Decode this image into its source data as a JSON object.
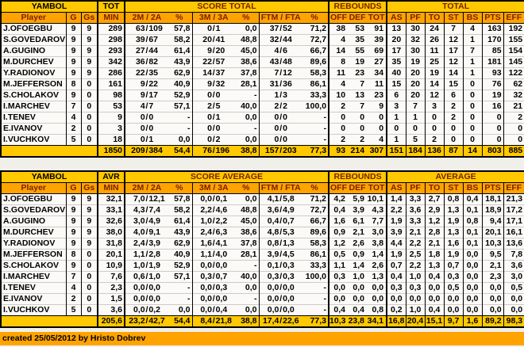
{
  "colors": {
    "group_header_bg": "#FFC800",
    "column_header_bg": "#FFA300",
    "header_text": "#7B2100",
    "total_row_bg": "#FFC800",
    "grid_line": "#000000",
    "row_separator": "#CFCBC4",
    "cell_bg": "#FBFAF8",
    "page_bg": "#F1EFEA"
  },
  "tables": [
    {
      "id": "totals",
      "team": "YAMBOL",
      "unit": "TOT",
      "groups": {
        "score": "SCORE TOTAL",
        "rebounds": "REBOUNDS",
        "stats": "TOTAL"
      },
      "column_headers": [
        "Player",
        "G",
        "Gs",
        "MIN",
        "2M / 2A",
        "%",
        "3M / 3A",
        "%",
        "FTM / FTA",
        "%",
        "OFF",
        "DEF",
        "TOT",
        "AS",
        "PF",
        "TO",
        "ST",
        "BS",
        "PTS",
        "EFF"
      ],
      "rows": [
        [
          "J.OFOEGBU",
          "9",
          "9",
          "289",
          "63",
          "109",
          "57,8",
          "0",
          "1",
          "0,0",
          "37",
          "52",
          "71,2",
          "38",
          "53",
          "91",
          "13",
          "30",
          "24",
          "7",
          "4",
          "163",
          "192"
        ],
        [
          "S.GOVEDAROV",
          "9",
          "9",
          "298",
          "39",
          "67",
          "58,2",
          "20",
          "41",
          "48,8",
          "32",
          "44",
          "72,7",
          "4",
          "35",
          "39",
          "20",
          "32",
          "26",
          "12",
          "1",
          "170",
          "155"
        ],
        [
          "A.GUGINO",
          "9",
          "9",
          "293",
          "27",
          "44",
          "61,4",
          "9",
          "20",
          "45,0",
          "4",
          "6",
          "66,7",
          "14",
          "55",
          "69",
          "17",
          "30",
          "11",
          "17",
          "7",
          "85",
          "154"
        ],
        [
          "M.DURCHEV",
          "9",
          "9",
          "342",
          "36",
          "82",
          "43,9",
          "22",
          "57",
          "38,6",
          "43",
          "48",
          "89,6",
          "8",
          "19",
          "27",
          "35",
          "19",
          "25",
          "12",
          "1",
          "181",
          "145"
        ],
        [
          "Y.RADIONOV",
          "9",
          "9",
          "286",
          "22",
          "35",
          "62,9",
          "14",
          "37",
          "37,8",
          "7",
          "12",
          "58,3",
          "11",
          "23",
          "34",
          "40",
          "20",
          "19",
          "14",
          "1",
          "93",
          "122"
        ],
        [
          "M.JEFFERSON",
          "8",
          "0",
          "161",
          "9",
          "22",
          "40,9",
          "9",
          "32",
          "28,1",
          "31",
          "36",
          "86,1",
          "4",
          "7",
          "11",
          "15",
          "20",
          "14",
          "15",
          "0",
          "76",
          "62"
        ],
        [
          "S.CHOLAKOV",
          "9",
          "0",
          "98",
          "9",
          "17",
          "52,9",
          "0",
          "0",
          "-",
          "1",
          "3",
          "33,3",
          "10",
          "13",
          "23",
          "6",
          "20",
          "12",
          "6",
          "0",
          "19",
          "32"
        ],
        [
          "I.MARCHEV",
          "7",
          "0",
          "53",
          "4",
          "7",
          "57,1",
          "2",
          "5",
          "40,0",
          "2",
          "2",
          "100,0",
          "2",
          "7",
          "9",
          "3",
          "7",
          "3",
          "2",
          "0",
          "16",
          "21"
        ],
        [
          "I.TENEV",
          "4",
          "0",
          "9",
          "0",
          "0",
          "-",
          "0",
          "1",
          "0,0",
          "0",
          "0",
          "-",
          "0",
          "0",
          "0",
          "1",
          "1",
          "0",
          "2",
          "0",
          "0",
          "2"
        ],
        [
          "E.IVANOV",
          "2",
          "0",
          "3",
          "0",
          "0",
          "-",
          "0",
          "0",
          "-",
          "0",
          "0",
          "-",
          "0",
          "0",
          "0",
          "0",
          "0",
          "0",
          "0",
          "0",
          "0",
          "0"
        ],
        [
          "I.VUCHKOV",
          "5",
          "0",
          "18",
          "0",
          "1",
          "0,0",
          "0",
          "2",
          "0,0",
          "0",
          "0",
          "-",
          "2",
          "2",
          "4",
          "1",
          "5",
          "2",
          "0",
          "0",
          "0",
          "0"
        ]
      ],
      "total_row": [
        "1850",
        "209",
        "384",
        "54,4",
        "76",
        "196",
        "38,8",
        "157",
        "203",
        "77,3",
        "93",
        "214",
        "307",
        "151",
        "184",
        "136",
        "87",
        "14",
        "803",
        "885"
      ]
    },
    {
      "id": "averages",
      "team": "YAMBOL",
      "unit": "AVR",
      "groups": {
        "score": "SCORE AVERAGE",
        "rebounds": "REBOUNDS",
        "stats": "AVERAGE"
      },
      "column_headers": [
        "Player",
        "G",
        "Gs",
        "MIN",
        "2M / 2A",
        "%",
        "3M / 3A",
        "%",
        "FTM / FTA",
        "%",
        "OFF",
        "DEF",
        "TOT",
        "AS",
        "PF",
        "TO",
        "ST",
        "BS",
        "PTS",
        "EFF"
      ],
      "rows": [
        [
          "J.OFOEGBU",
          "9",
          "9",
          "32,1",
          "7,0",
          "12,1",
          "57,8",
          "0,0",
          "0,1",
          "0,0",
          "4,1",
          "5,8",
          "71,2",
          "4,2",
          "5,9",
          "10,1",
          "1,4",
          "3,3",
          "2,7",
          "0,8",
          "0,4",
          "18,1",
          "21,3"
        ],
        [
          "S.GOVEDAROV",
          "9",
          "9",
          "33,1",
          "4,3",
          "7,4",
          "58,2",
          "2,2",
          "4,6",
          "48,8",
          "3,6",
          "4,9",
          "72,7",
          "0,4",
          "3,9",
          "4,3",
          "2,2",
          "3,6",
          "2,9",
          "1,3",
          "0,1",
          "18,9",
          "17,2"
        ],
        [
          "A.GUGINO",
          "9",
          "9",
          "32,6",
          "3,0",
          "4,9",
          "61,4",
          "1,0",
          "2,2",
          "45,0",
          "0,4",
          "0,7",
          "66,7",
          "1,6",
          "6,1",
          "7,7",
          "1,9",
          "3,3",
          "1,2",
          "1,9",
          "0,8",
          "9,4",
          "17,1"
        ],
        [
          "M.DURCHEV",
          "9",
          "9",
          "38,0",
          "4,0",
          "9,1",
          "43,9",
          "2,4",
          "6,3",
          "38,6",
          "4,8",
          "5,3",
          "89,6",
          "0,9",
          "2,1",
          "3,0",
          "3,9",
          "2,1",
          "2,8",
          "1,3",
          "0,1",
          "20,1",
          "16,1"
        ],
        [
          "Y.RADIONOV",
          "9",
          "9",
          "31,8",
          "2,4",
          "3,9",
          "62,9",
          "1,6",
          "4,1",
          "37,8",
          "0,8",
          "1,3",
          "58,3",
          "1,2",
          "2,6",
          "3,8",
          "4,4",
          "2,2",
          "2,1",
          "1,6",
          "0,1",
          "10,3",
          "13,6"
        ],
        [
          "M.JEFFERSON",
          "8",
          "0",
          "20,1",
          "1,1",
          "2,8",
          "40,9",
          "1,1",
          "4,0",
          "28,1",
          "3,9",
          "4,5",
          "86,1",
          "0,5",
          "0,9",
          "1,4",
          "1,9",
          "2,5",
          "1,8",
          "1,9",
          "0,0",
          "9,5",
          "7,8"
        ],
        [
          "S.CHOLAKOV",
          "9",
          "0",
          "10,9",
          "1,0",
          "1,9",
          "52,9",
          "0,0",
          "0,0",
          "-",
          "0,1",
          "0,3",
          "33,3",
          "1,1",
          "1,4",
          "2,6",
          "0,7",
          "2,2",
          "1,3",
          "0,7",
          "0,0",
          "2,1",
          "3,6"
        ],
        [
          "I.MARCHEV",
          "7",
          "0",
          "7,6",
          "0,6",
          "1,0",
          "57,1",
          "0,3",
          "0,7",
          "40,0",
          "0,3",
          "0,3",
          "100,0",
          "0,3",
          "1,0",
          "1,3",
          "0,4",
          "1,0",
          "0,4",
          "0,3",
          "0,0",
          "2,3",
          "3,0"
        ],
        [
          "I.TENEV",
          "4",
          "0",
          "2,3",
          "0,0",
          "0,0",
          "-",
          "0,0",
          "0,3",
          "0,0",
          "0,0",
          "0,0",
          "-",
          "0,0",
          "0,0",
          "0,0",
          "0,3",
          "0,3",
          "0,0",
          "0,5",
          "0,0",
          "0,0",
          "0,5"
        ],
        [
          "E.IVANOV",
          "2",
          "0",
          "1,5",
          "0,0",
          "0,0",
          "-",
          "0,0",
          "0,0",
          "-",
          "0,0",
          "0,0",
          "-",
          "0,0",
          "0,0",
          "0,0",
          "0,0",
          "0,0",
          "0,0",
          "0,0",
          "0,0",
          "0,0",
          "0,0"
        ],
        [
          "I.VUCHKOV",
          "5",
          "0",
          "3,6",
          "0,0",
          "0,2",
          "0,0",
          "0,0",
          "0,4",
          "0,0",
          "0,0",
          "0,0",
          "-",
          "0,4",
          "0,4",
          "0,8",
          "0,2",
          "1,0",
          "0,4",
          "0,0",
          "0,0",
          "0,0",
          "0,0"
        ]
      ],
      "total_row": [
        "205,6",
        "23,2",
        "42,7",
        "54,4",
        "8,4",
        "21,8",
        "38,8",
        "17,4",
        "22,6",
        "77,3",
        "10,3",
        "23,8",
        "34,1",
        "16,8",
        "20,4",
        "15,1",
        "9,7",
        "1,6",
        "89,2",
        "98,3"
      ]
    }
  ],
  "footer": {
    "text": "created 25/05/2012 by Hristo Dobrev"
  }
}
